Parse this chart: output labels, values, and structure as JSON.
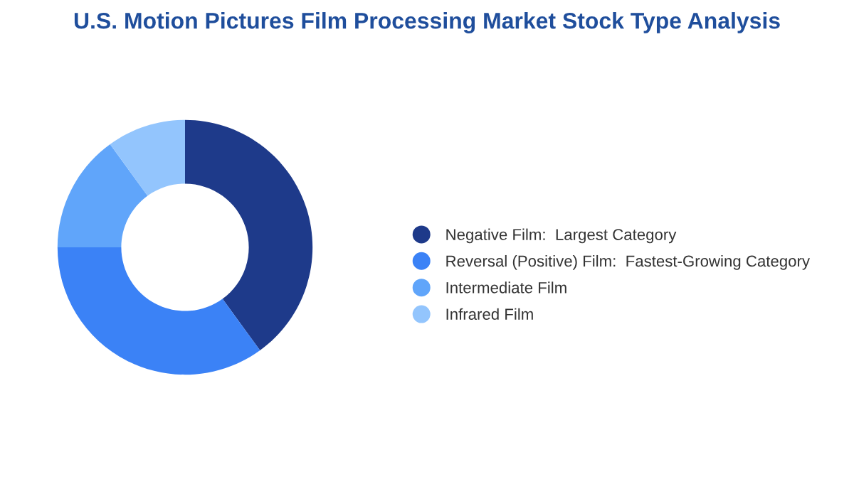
{
  "chart_data": {
    "type": "donut",
    "title": "U.S. Motion Pictures Film Processing Market Stock Type Analysis",
    "categories": [
      "Negative Film:  Largest Category",
      "Reversal (Positive) Film:  Fastest-Growing Category",
      "Intermediate Film",
      "Infrared Film"
    ],
    "values": [
      40,
      35,
      15,
      10
    ],
    "colors": [
      "#1e3a8a",
      "#3b82f6",
      "#60a5fa",
      "#93c5fd"
    ],
    "legend": "right"
  }
}
